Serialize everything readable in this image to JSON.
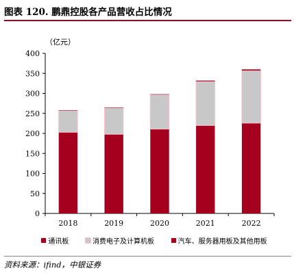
{
  "title": "图表 120. 鹏鼎控股各产品营收占比情况",
  "source": "资料来源：ifind，中银证券",
  "chart_data": {
    "type": "bar",
    "stacked": true,
    "unit_label": "（亿元）",
    "categories": [
      "2018",
      "2019",
      "2020",
      "2021",
      "2022"
    ],
    "series": [
      {
        "name": "通讯板",
        "values": [
          203,
          198,
          211,
          220,
          226
        ],
        "color": "#a6001f"
      },
      {
        "name": "消费电子及计算机板",
        "values": [
          54,
          66,
          86,
          110,
          131
        ],
        "color": "#c8c8c8"
      },
      {
        "name": "汽车、服务器用板及其他用板",
        "values": [
          1,
          1,
          1,
          2,
          3
        ],
        "color": "#a6001f"
      }
    ],
    "ylim": [
      0,
      400
    ],
    "yticks": [
      0,
      50,
      100,
      150,
      200,
      250,
      300,
      350,
      400
    ],
    "grid": false,
    "legend_position": "bottom"
  }
}
